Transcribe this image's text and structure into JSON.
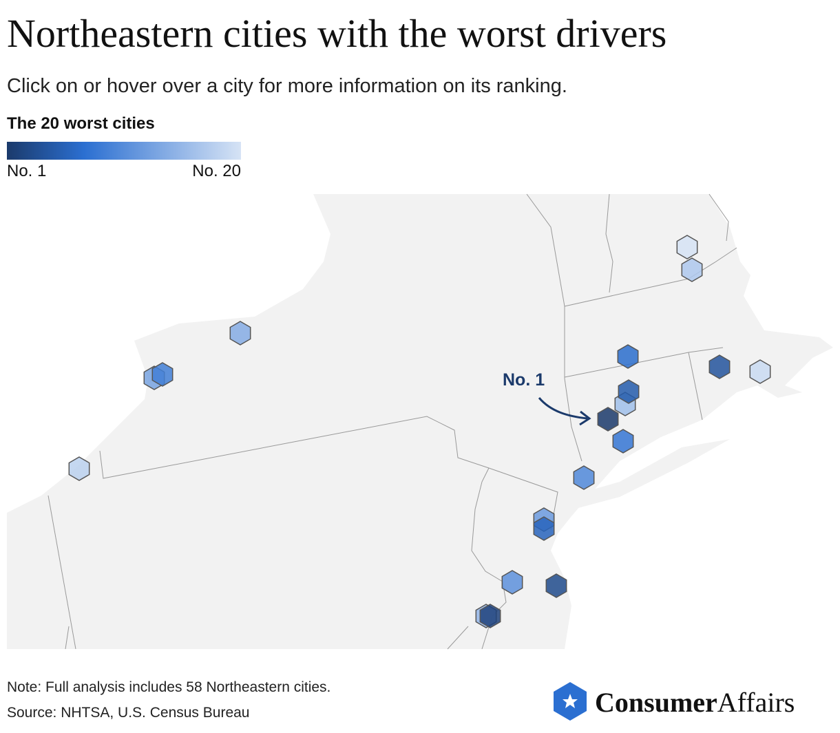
{
  "title": "Northeastern cities with the worst drivers",
  "subtitle": "Click on or hover over a city for more information on its ranking.",
  "legend": {
    "title": "The 20 worst cities",
    "ticks": [
      {
        "value": 1,
        "label": "No. 1"
      },
      {
        "value": 20,
        "label": "No. 20"
      }
    ]
  },
  "map": {
    "type": "hexbin-map",
    "annotation": "No. 1",
    "ranks": [
      1,
      2,
      3,
      4,
      5,
      6,
      7,
      8,
      9,
      10,
      11,
      12,
      13,
      14,
      15,
      16,
      17,
      18,
      19,
      20
    ]
  },
  "footer": {
    "note": "Note: Full analysis includes 58 Northeastern cities.",
    "source": "Source: NHTSA, U.S. Census Bureau"
  },
  "logo": {
    "bold": "Consumer",
    "light": "Affairs"
  }
}
